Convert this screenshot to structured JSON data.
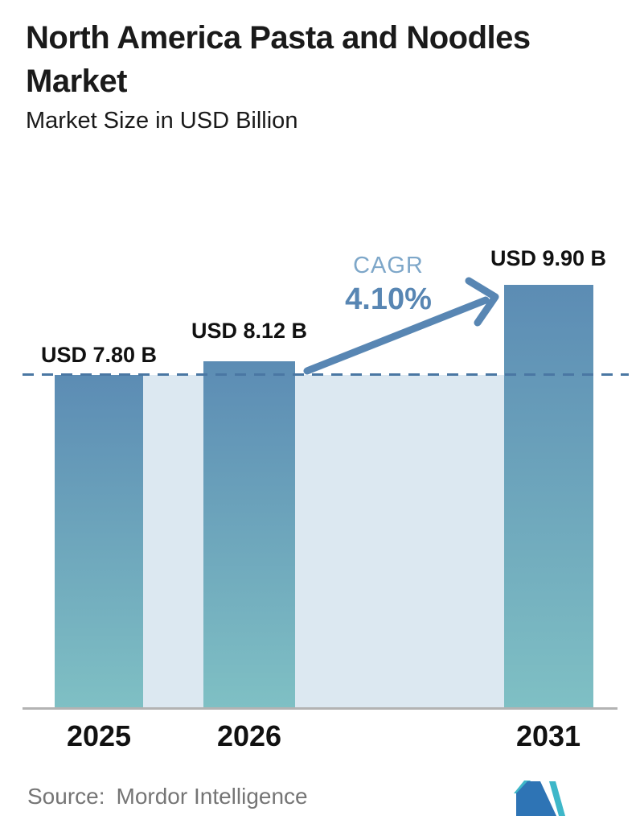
{
  "header": {
    "title": "North America Pasta and Noodles Market",
    "subtitle": "Market Size in USD Billion"
  },
  "chart_data": {
    "type": "bar",
    "title": "North America Pasta and Noodles Market",
    "ylabel": "Market Size in USD Billion",
    "categories": [
      "2025",
      "2026",
      "2031"
    ],
    "values": [
      7.8,
      8.12,
      9.9
    ],
    "value_labels": [
      "USD 7.80 B",
      "USD 8.12 B",
      "USD 9.90 B"
    ],
    "ylim": [
      0,
      10.4
    ],
    "grid": false,
    "legend": "none",
    "baseline_value": 7.8,
    "annotations": {
      "cagr_label": "CAGR",
      "cagr_value": "4.10%",
      "arrow": "from top of 2026 bar up to top of 2031 bar"
    }
  },
  "footer": {
    "source_label": "Source:",
    "source_name": "Mordor Intelligence",
    "logo_icon": "mordor-intelligence-logo"
  },
  "colors": {
    "text": "#1a1a1a",
    "bar_top": "#5c8cb4",
    "bar_bottom": "#7fc0c4",
    "band": "#dce8f1",
    "dashed_line": "#4a77a3",
    "accent": "#5886b3",
    "cagr_label": "#7ea7c9",
    "axis": "#b3b3b3",
    "source_text": "#757575",
    "logo_blue": "#2e74b5",
    "logo_teal": "#3eb7c9"
  }
}
